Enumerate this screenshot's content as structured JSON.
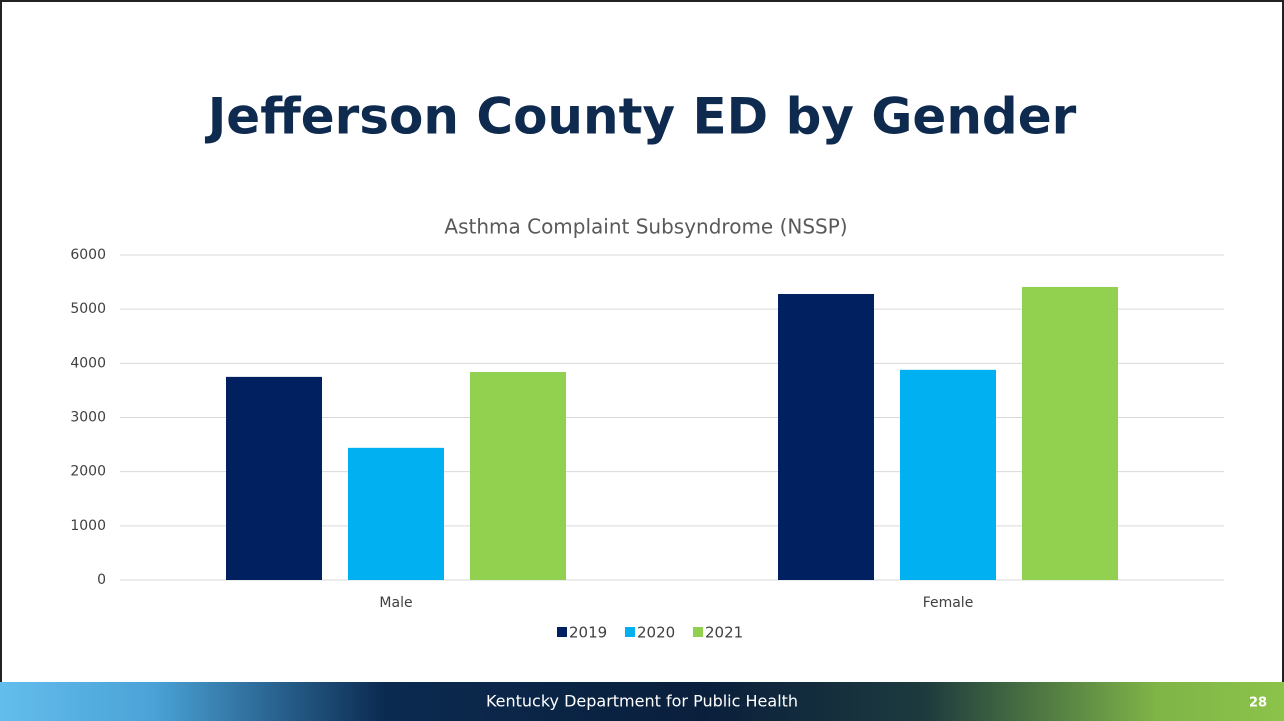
{
  "slide": {
    "title": "Jefferson County ED by Gender",
    "footer": "Kentucky Department for Public Health",
    "page_number": "28"
  },
  "chart_data": {
    "type": "bar",
    "title": "Asthma Complaint Subsyndrome (NSSP)",
    "categories": [
      "Male",
      "Female"
    ],
    "series": [
      {
        "name": "2019",
        "color": "#002060",
        "values": [
          3750,
          5280
        ]
      },
      {
        "name": "2020",
        "color": "#00b0f0",
        "values": [
          2440,
          3880
        ]
      },
      {
        "name": "2021",
        "color": "#92d050",
        "values": [
          3840,
          5410
        ]
      }
    ],
    "ylim": [
      0,
      6000
    ],
    "yticks": [
      0,
      1000,
      2000,
      3000,
      4000,
      5000,
      6000
    ],
    "grid": true,
    "legend": "bottom"
  }
}
